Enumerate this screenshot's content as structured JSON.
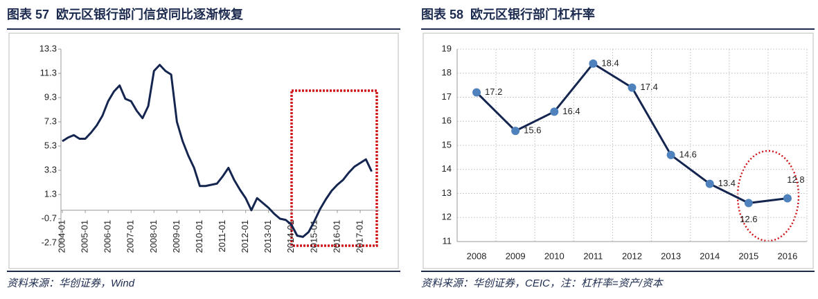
{
  "chart_data": [
    {
      "type": "line",
      "title": "图表 57  欧元区银行部门信贷同比逐渐恢复",
      "source": "资料来源：华创证券，Wind",
      "categories": [
        "2004-01",
        null,
        null,
        null,
        "2005-01",
        null,
        null,
        null,
        "2006-01",
        null,
        null,
        null,
        "2007-01",
        null,
        null,
        null,
        "2008-01",
        null,
        null,
        null,
        "2009-01",
        null,
        null,
        null,
        "2010-01",
        null,
        null,
        null,
        "2011-01",
        null,
        null,
        null,
        "2012-01",
        null,
        null,
        null,
        "2013-01",
        null,
        null,
        null,
        "2014-01",
        null,
        null,
        null,
        "2015-01",
        null,
        null,
        null,
        "2016-01",
        null,
        null,
        null,
        "2017-01",
        null,
        null
      ],
      "values": [
        5.7,
        6.0,
        6.2,
        5.9,
        5.9,
        6.4,
        7.0,
        7.8,
        9.0,
        9.8,
        10.3,
        9.2,
        9.0,
        8.2,
        7.6,
        8.6,
        11.5,
        12.0,
        11.5,
        11.2,
        7.3,
        5.7,
        4.5,
        3.5,
        2.0,
        2.0,
        2.1,
        2.2,
        2.8,
        3.5,
        2.5,
        1.7,
        1.0,
        0.0,
        1.0,
        0.6,
        0.2,
        -0.3,
        -0.7,
        -0.8,
        -1.2,
        -2.1,
        -2.2,
        -1.8,
        -0.9,
        0.1,
        0.9,
        1.6,
        2.1,
        2.5,
        3.1,
        3.6,
        3.9,
        4.2,
        3.2
      ],
      "color": "#14254f",
      "ylim": [
        -2.7,
        13.3
      ],
      "yticks": [
        -2.7,
        -0.7,
        1.3,
        3.3,
        5.3,
        7.3,
        9.3,
        11.3,
        13.3
      ],
      "grid": false
    },
    {
      "type": "line-marker",
      "title": "图表 58  欧元区银行部门杠杆率",
      "source": "资料来源：华创证券，CEIC，注：杠杆率=资产/资本",
      "categories": [
        "2008",
        "2009",
        "2010",
        "2011",
        "2012",
        "2013",
        "2014",
        "2015",
        "2016"
      ],
      "values": [
        17.2,
        15.6,
        16.4,
        18.4,
        17.4,
        14.6,
        13.4,
        12.6,
        12.8
      ],
      "color": "#14254f",
      "marker_color": "#4f81bd",
      "ylim": [
        11,
        19
      ],
      "yticks": [
        11,
        12,
        13,
        14,
        15,
        16,
        17,
        18,
        19
      ],
      "grid": true
    }
  ]
}
